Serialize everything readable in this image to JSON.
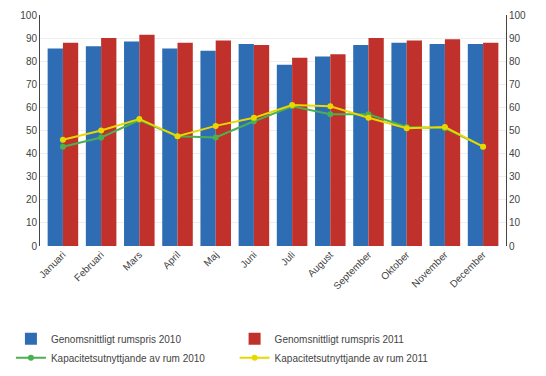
{
  "chart_data": {
    "type": "bar",
    "categories": [
      "Januari",
      "Februari",
      "Mars",
      "April",
      "Maj",
      "Juni",
      "Juli",
      "August",
      "September",
      "Oktober",
      "November",
      "December"
    ],
    "series": [
      {
        "name": "Genomsnittligt rumspris 2010",
        "type": "bar",
        "color": "#2E6DB4",
        "values": [
          85.5,
          86.5,
          88.5,
          85.5,
          84.5,
          87.5,
          78.5,
          82.0,
          87.0,
          88.0,
          87.5,
          87.5
        ]
      },
      {
        "name": "Genomsnittligt rumspris 2011",
        "type": "bar",
        "color": "#C0312B",
        "values": [
          88.0,
          90.0,
          91.5,
          88.0,
          89.0,
          87.0,
          81.5,
          83.0,
          90.0,
          89.0,
          89.5,
          88.0
        ]
      },
      {
        "name": "Kapacitetsutnyttjande av rum 2010",
        "type": "line",
        "axis": "y2",
        "color": "#4CAF50",
        "marker": "circle",
        "line_style": "solid",
        "values": [
          43.0,
          47.0,
          54.5,
          47.5,
          47.0,
          54.0,
          60.5,
          57.0,
          57.0,
          51.5,
          51.0,
          43.0
        ]
      },
      {
        "name": "Kapacitetsutnyttjande av rum 2011",
        "type": "line",
        "axis": "y2",
        "color": "#E8D800",
        "marker": "circle",
        "line_style": "solid",
        "values": [
          46.0,
          50.0,
          55.0,
          47.5,
          52.0,
          55.5,
          61.0,
          60.5,
          55.5,
          51.0,
          51.5,
          43.0
        ]
      }
    ],
    "ylim": [
      0,
      100
    ],
    "yticks": [
      0,
      10,
      20,
      30,
      40,
      50,
      60,
      70,
      80,
      90,
      100
    ],
    "y2lim": [
      0,
      100
    ],
    "y2ticks": [
      0,
      10,
      20,
      30,
      40,
      50,
      60,
      70,
      80,
      90,
      100
    ],
    "grid": true,
    "legend": "bottom"
  }
}
